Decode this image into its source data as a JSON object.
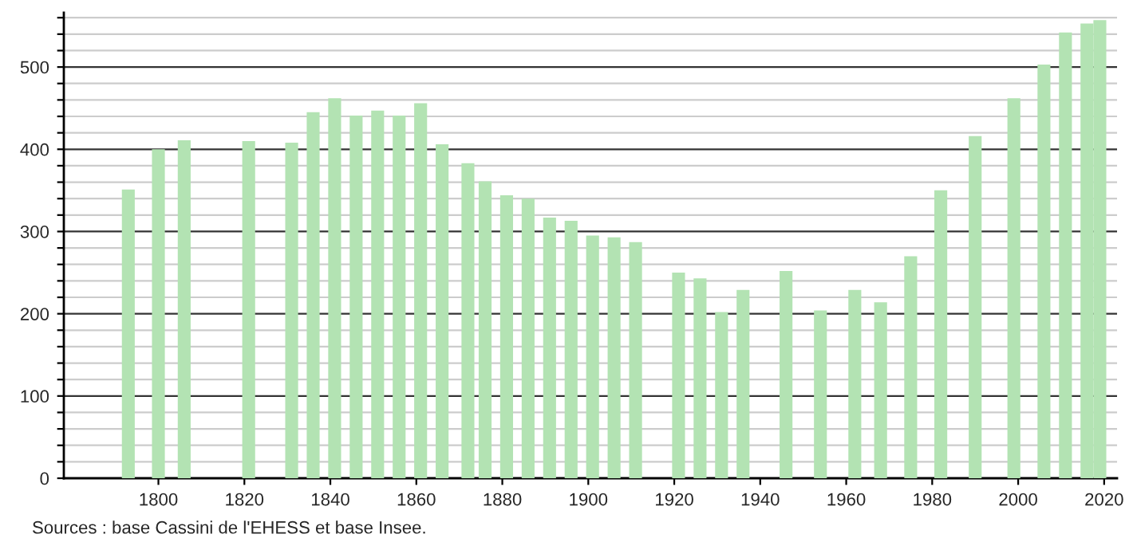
{
  "chart_data": {
    "type": "bar",
    "x": [
      1793,
      1800,
      1806,
      1821,
      1831,
      1836,
      1841,
      1846,
      1851,
      1856,
      1861,
      1866,
      1872,
      1876,
      1881,
      1886,
      1891,
      1896,
      1901,
      1906,
      1911,
      1921,
      1926,
      1931,
      1936,
      1946,
      1954,
      1962,
      1968,
      1975,
      1982,
      1990,
      1999,
      2006,
      2011,
      2016,
      2019
    ],
    "series": [
      {
        "color": "#b3e3b3",
        "values": [
          351,
          400,
          411,
          410,
          408,
          445,
          462,
          441,
          447,
          441,
          456,
          406,
          383,
          361,
          344,
          340,
          317,
          313,
          295,
          293,
          287,
          250,
          243,
          202,
          229,
          252,
          204,
          229,
          214,
          270,
          350,
          416,
          462,
          503,
          542,
          553,
          557
        ]
      }
    ],
    "xlim": [
      1778,
      2023
    ],
    "xticks": [
      1800,
      1820,
      1840,
      1860,
      1880,
      1900,
      1920,
      1940,
      1960,
      1980,
      2000,
      2020
    ],
    "ylim": [
      0,
      566
    ],
    "yticks": [
      0,
      {
        "value": 20,
        "label": null
      },
      {
        "value": 40,
        "label": null
      },
      {
        "value": 60,
        "label": null
      },
      {
        "value": 80,
        "label": null
      },
      100,
      {
        "value": 120,
        "label": null
      },
      {
        "value": 140,
        "label": null
      },
      {
        "value": 160,
        "label": null
      },
      {
        "value": 180,
        "label": null
      },
      200,
      {
        "value": 220,
        "label": null
      },
      {
        "value": 240,
        "label": null
      },
      {
        "value": 260,
        "label": null
      },
      {
        "value": 280,
        "label": null
      },
      300,
      {
        "value": 320,
        "label": null
      },
      {
        "value": 340,
        "label": null
      },
      {
        "value": 360,
        "label": null
      },
      {
        "value": 380,
        "label": null
      },
      400,
      {
        "value": 420,
        "label": null
      },
      {
        "value": 440,
        "label": null
      },
      {
        "value": 460,
        "label": null
      },
      {
        "value": 480,
        "label": null
      },
      500,
      {
        "value": 520,
        "label": null
      },
      {
        "value": 540,
        "label": null
      },
      {
        "value": 560,
        "label": null
      }
    ],
    "grid": "y",
    "annotations": [
      "Sources : base Cassini de l'EHESS et base Insee."
    ]
  }
}
